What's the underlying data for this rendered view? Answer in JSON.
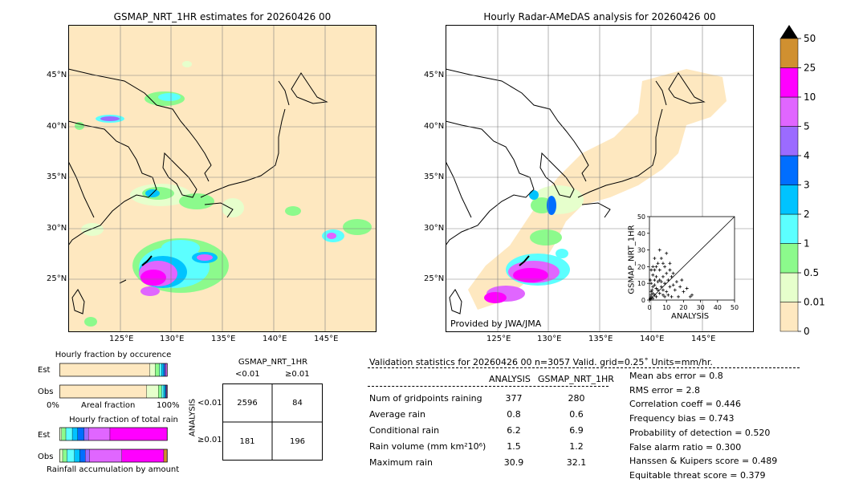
{
  "maps": {
    "left_title": "GSMAP_NRT_1HR estimates for 20260426 00",
    "right_title": "Hourly Radar-AMeDAS analysis for 20260426 00",
    "lat_labels": [
      "45°N",
      "40°N",
      "35°N",
      "30°N",
      "25°N"
    ],
    "lon_labels": [
      "125°E",
      "130°E",
      "135°E",
      "140°E",
      "145°E"
    ],
    "provided_by": "Provided by JWA/JMA",
    "land_color": "#ffe9be",
    "grid_color": "#808080"
  },
  "colorbar": {
    "levels": [
      "0",
      "0.01",
      "0.5",
      "1",
      "2",
      "3",
      "4",
      "5",
      "10",
      "25",
      "50"
    ],
    "colors": [
      "#fee8c0",
      "#e6ffcc",
      "#8cfa8c",
      "#5cffff",
      "#00c3ff",
      "#006eff",
      "#9b6bff",
      "#e066ff",
      "#ff00ff",
      "#d09030"
    ],
    "extend_color": "#000000"
  },
  "chart_data": [
    {
      "type": "scatter",
      "xlabel": "ANALYSIS",
      "ylabel": "GSMAP_NRT_1HR",
      "xlim": [
        0,
        50
      ],
      "ylim": [
        0,
        50
      ],
      "xticks": [
        "0",
        "10",
        "20",
        "30",
        "40",
        "50"
      ],
      "yticks": [
        "0",
        "10",
        "20",
        "30",
        "40",
        "50"
      ],
      "points": [
        [
          0.5,
          0.5
        ],
        [
          1,
          2
        ],
        [
          2,
          1
        ],
        [
          1,
          5
        ],
        [
          3,
          3
        ],
        [
          2,
          8
        ],
        [
          4,
          2
        ],
        [
          5,
          6
        ],
        [
          6,
          4
        ],
        [
          1,
          10
        ],
        [
          3,
          12
        ],
        [
          7,
          8
        ],
        [
          8,
          3
        ],
        [
          2,
          15
        ],
        [
          4,
          20
        ],
        [
          9,
          10
        ],
        [
          10,
          5
        ],
        [
          6,
          18
        ],
        [
          12,
          8
        ],
        [
          3,
          25
        ],
        [
          5,
          22
        ],
        [
          8,
          14
        ],
        [
          11,
          12
        ],
        [
          14,
          9
        ],
        [
          7,
          25
        ],
        [
          9,
          20
        ],
        [
          13,
          14
        ],
        [
          15,
          6
        ],
        [
          16,
          11
        ],
        [
          18,
          8
        ],
        [
          20,
          5
        ],
        [
          22,
          7
        ],
        [
          25,
          3
        ],
        [
          10,
          28
        ],
        [
          12,
          22
        ],
        [
          6,
          12
        ],
        [
          4,
          7
        ],
        [
          2,
          4
        ],
        [
          1,
          3
        ],
        [
          0.5,
          1
        ],
        [
          1.5,
          6
        ],
        [
          3,
          9
        ],
        [
          5,
          11
        ],
        [
          8,
          6
        ],
        [
          9,
          2
        ],
        [
          11,
          3
        ],
        [
          13,
          2
        ],
        [
          17,
          2
        ],
        [
          19,
          12
        ],
        [
          6,
          30
        ],
        [
          8,
          22
        ],
        [
          10,
          16
        ],
        [
          12,
          18
        ],
        [
          14,
          16
        ],
        [
          2,
          20
        ],
        [
          1,
          18
        ],
        [
          0.5,
          12
        ],
        [
          3,
          18
        ],
        [
          4,
          14
        ],
        [
          7,
          11
        ],
        [
          24,
          2
        ]
      ]
    },
    {
      "type": "bar",
      "title": "Hourly fraction by occurence",
      "categories": [
        "Est",
        "Obs"
      ],
      "xlabel": "Areal fraction",
      "xtick_labels": [
        "0%",
        "100%"
      ],
      "series": [
        {
          "values": [
            0.84,
            0.81
          ]
        },
        {
          "values": [
            0.05,
            0.11
          ]
        },
        {
          "values": [
            0.04,
            0.03
          ]
        },
        {
          "values": [
            0.02,
            0.02
          ]
        },
        {
          "values": [
            0.02,
            0.015
          ]
        },
        {
          "values": [
            0.01,
            0.005
          ]
        },
        {
          "values": [
            0.01,
            0.005
          ]
        },
        {
          "values": [
            0.01,
            0.005
          ]
        }
      ]
    },
    {
      "type": "bar",
      "title": "Hourly fraction of total rain",
      "categories": [
        "Est",
        "Obs"
      ],
      "xlabel": "Rainfall accumulation by amount",
      "series": [
        {
          "values": [
            0.0,
            0.0
          ]
        },
        {
          "values": [
            0.02,
            0.03
          ]
        },
        {
          "values": [
            0.04,
            0.04
          ]
        },
        {
          "values": [
            0.06,
            0.07
          ]
        },
        {
          "values": [
            0.05,
            0.05
          ]
        },
        {
          "values": [
            0.06,
            0.05
          ]
        },
        {
          "values": [
            0.04,
            0.04
          ]
        },
        {
          "values": [
            0.2,
            0.3
          ]
        },
        {
          "values": [
            0.53,
            0.39
          ]
        },
        {
          "values": [
            0.0,
            0.03
          ]
        }
      ]
    },
    {
      "type": "table",
      "title": "GSMAP_NRT_1HR",
      "col_labels": [
        "<0.01",
        "≥0.01"
      ],
      "row_axis_label": "ANALYSIS",
      "row_labels": [
        "<0.01",
        "≥0.01"
      ],
      "cells": [
        [
          "2596",
          "84"
        ],
        [
          "181",
          "196"
        ]
      ]
    }
  ],
  "stats": {
    "header": "Validation statistics for 20260426 00  n=3057 Valid. grid=0.25˚ Units=mm/hr.",
    "col_analysis": "ANALYSIS",
    "col_gsmap": "GSMAP_NRT_1HR",
    "rows": [
      {
        "label": "Num of gridpoints raining",
        "analysis": "377",
        "gsmap": "280"
      },
      {
        "label": "Average rain",
        "analysis": "0.8",
        "gsmap": "0.6"
      },
      {
        "label": "Conditional rain",
        "analysis": "6.2",
        "gsmap": "6.9"
      },
      {
        "label": "Rain volume (mm km²10⁶)",
        "analysis": "1.5",
        "gsmap": "1.2"
      },
      {
        "label": "Maximum rain",
        "analysis": "30.9",
        "gsmap": "32.1"
      }
    ],
    "scores": [
      "Mean abs error =    0.8",
      "RMS error =    2.8",
      "Correlation coeff =  0.446",
      "Frequency bias =  0.743",
      "Probability of detection =  0.520",
      "False alarm ratio =  0.300",
      "Hanssen & Kuipers score =  0.489",
      "Equitable threat score =  0.379"
    ]
  }
}
